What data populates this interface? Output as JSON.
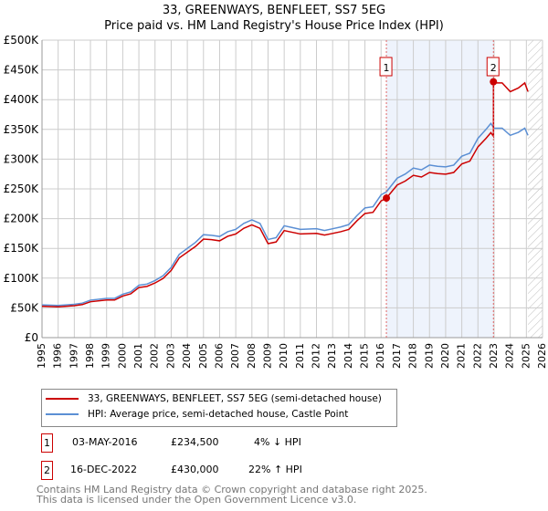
{
  "title": "33, GREENWAYS, BENFLEET, SS7 5EG",
  "subtitle": "Price paid vs. HM Land Registry's House Price Index (HPI)",
  "chart_data": {
    "type": "line",
    "title": "33, GREENWAYS, BENFLEET, SS7 5EG — Price paid vs. HM Land Registry's House Price Index (HPI)",
    "xlim": [
      1995,
      2026
    ],
    "ylim": [
      0,
      500000
    ],
    "xticks": [
      "1995",
      "1996",
      "1997",
      "1998",
      "1999",
      "2000",
      "2001",
      "2002",
      "2003",
      "2004",
      "2005",
      "2006",
      "2007",
      "2008",
      "2009",
      "2010",
      "2011",
      "2012",
      "2013",
      "2014",
      "2015",
      "2016",
      "2017",
      "2018",
      "2019",
      "2020",
      "2021",
      "2022",
      "2023",
      "2024",
      "2025",
      "2026"
    ],
    "yticks": [
      "£0",
      "£50K",
      "£100K",
      "£150K",
      "£200K",
      "£250K",
      "£300K",
      "£350K",
      "£400K",
      "£450K",
      "£500K"
    ],
    "grid": true,
    "hpi_series": {
      "name": "HPI: Average price, semi-detached house, Castle Point",
      "color": "#5b8fd4",
      "x": [
        1995,
        1996,
        1997,
        1997.5,
        1998,
        1999,
        1999.5,
        2000,
        2000.5,
        2001,
        2001.5,
        2002,
        2002.5,
        2003,
        2003.5,
        2004,
        2004.5,
        2005,
        2005.5,
        2006,
        2006.5,
        2007,
        2007.5,
        2008,
        2008.5,
        2009,
        2009.5,
        2010,
        2010.5,
        2011,
        2012,
        2012.5,
        2013,
        2013.5,
        2014,
        2014.5,
        2015,
        2015.5,
        2016,
        2016.33,
        2017,
        2017.5,
        2018,
        2018.5,
        2019,
        2019.5,
        2020,
        2020.5,
        2021,
        2021.5,
        2022,
        2022.5,
        2022.8,
        2023,
        2023.5,
        2024,
        2024.5,
        2024.9,
        2025.1
      ],
      "y": [
        55000,
        54000,
        56000,
        58000,
        63000,
        66000,
        66000,
        73000,
        77000,
        88000,
        90000,
        96000,
        104000,
        118000,
        140000,
        150000,
        160000,
        173000,
        172000,
        170000,
        178000,
        182000,
        192000,
        198000,
        192000,
        165000,
        168000,
        188000,
        185000,
        182000,
        183000,
        180000,
        183000,
        186000,
        190000,
        205000,
        218000,
        220000,
        240000,
        245000,
        268000,
        275000,
        285000,
        282000,
        290000,
        288000,
        287000,
        290000,
        305000,
        310000,
        335000,
        350000,
        360000,
        352000,
        352000,
        340000,
        345000,
        352000,
        340000
      ]
    },
    "price_series": {
      "name": "33, GREENWAYS, BENFLEET, SS7 5EG (semi-detached house)",
      "color": "#cc0000"
    },
    "sales": [
      {
        "label": "1",
        "date": "03-MAY-2016",
        "x": 2016.33,
        "price": "£234,500",
        "value": 234500,
        "hpi": "4% ↓ HPI"
      },
      {
        "label": "2",
        "date": "16-DEC-2022",
        "x": 2022.96,
        "price": "£430,000",
        "value": 430000,
        "hpi": "22% ↑ HPI"
      }
    ],
    "forecast_start": 2025.1
  },
  "legend": {
    "price": "33, GREENWAYS, BENFLEET, SS7 5EG (semi-detached house)",
    "hpi": "HPI: Average price, semi-detached house, Castle Point"
  },
  "footer": {
    "line1": "Contains HM Land Registry data © Crown copyright and database right 2025.",
    "line2": "This data is licensed under the Open Government Licence v3.0."
  }
}
